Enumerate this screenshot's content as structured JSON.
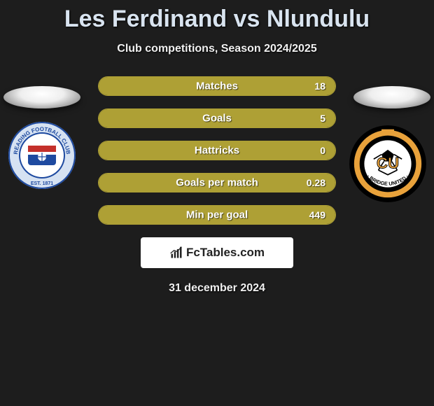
{
  "title": "Les Ferdinand vs Nlundulu",
  "subtitle": "Club competitions, Season 2024/2025",
  "date": "31 december 2024",
  "fill_color": "#aea035",
  "border_color": "#aea035",
  "right_fill_percent": 100,
  "stats": [
    {
      "label": "Matches",
      "right_value": "18"
    },
    {
      "label": "Goals",
      "right_value": "5"
    },
    {
      "label": "Hattricks",
      "right_value": "0"
    },
    {
      "label": "Goals per match",
      "right_value": "0.28"
    },
    {
      "label": "Min per goal",
      "right_value": "449"
    }
  ],
  "brand_text": "FcTables.com",
  "badge_left": {
    "outer_ring": "#d6e2f2",
    "inner_ring": "#1e4aa0",
    "top_text": "READING",
    "bottom_text": "EST. 1871",
    "fc_text": "FOOTBALL CLUB"
  },
  "badge_right": {
    "outer": "#000000",
    "mid": "#e9a23b",
    "text": "CU",
    "bottom_text": "BRIDGE UNITED"
  }
}
